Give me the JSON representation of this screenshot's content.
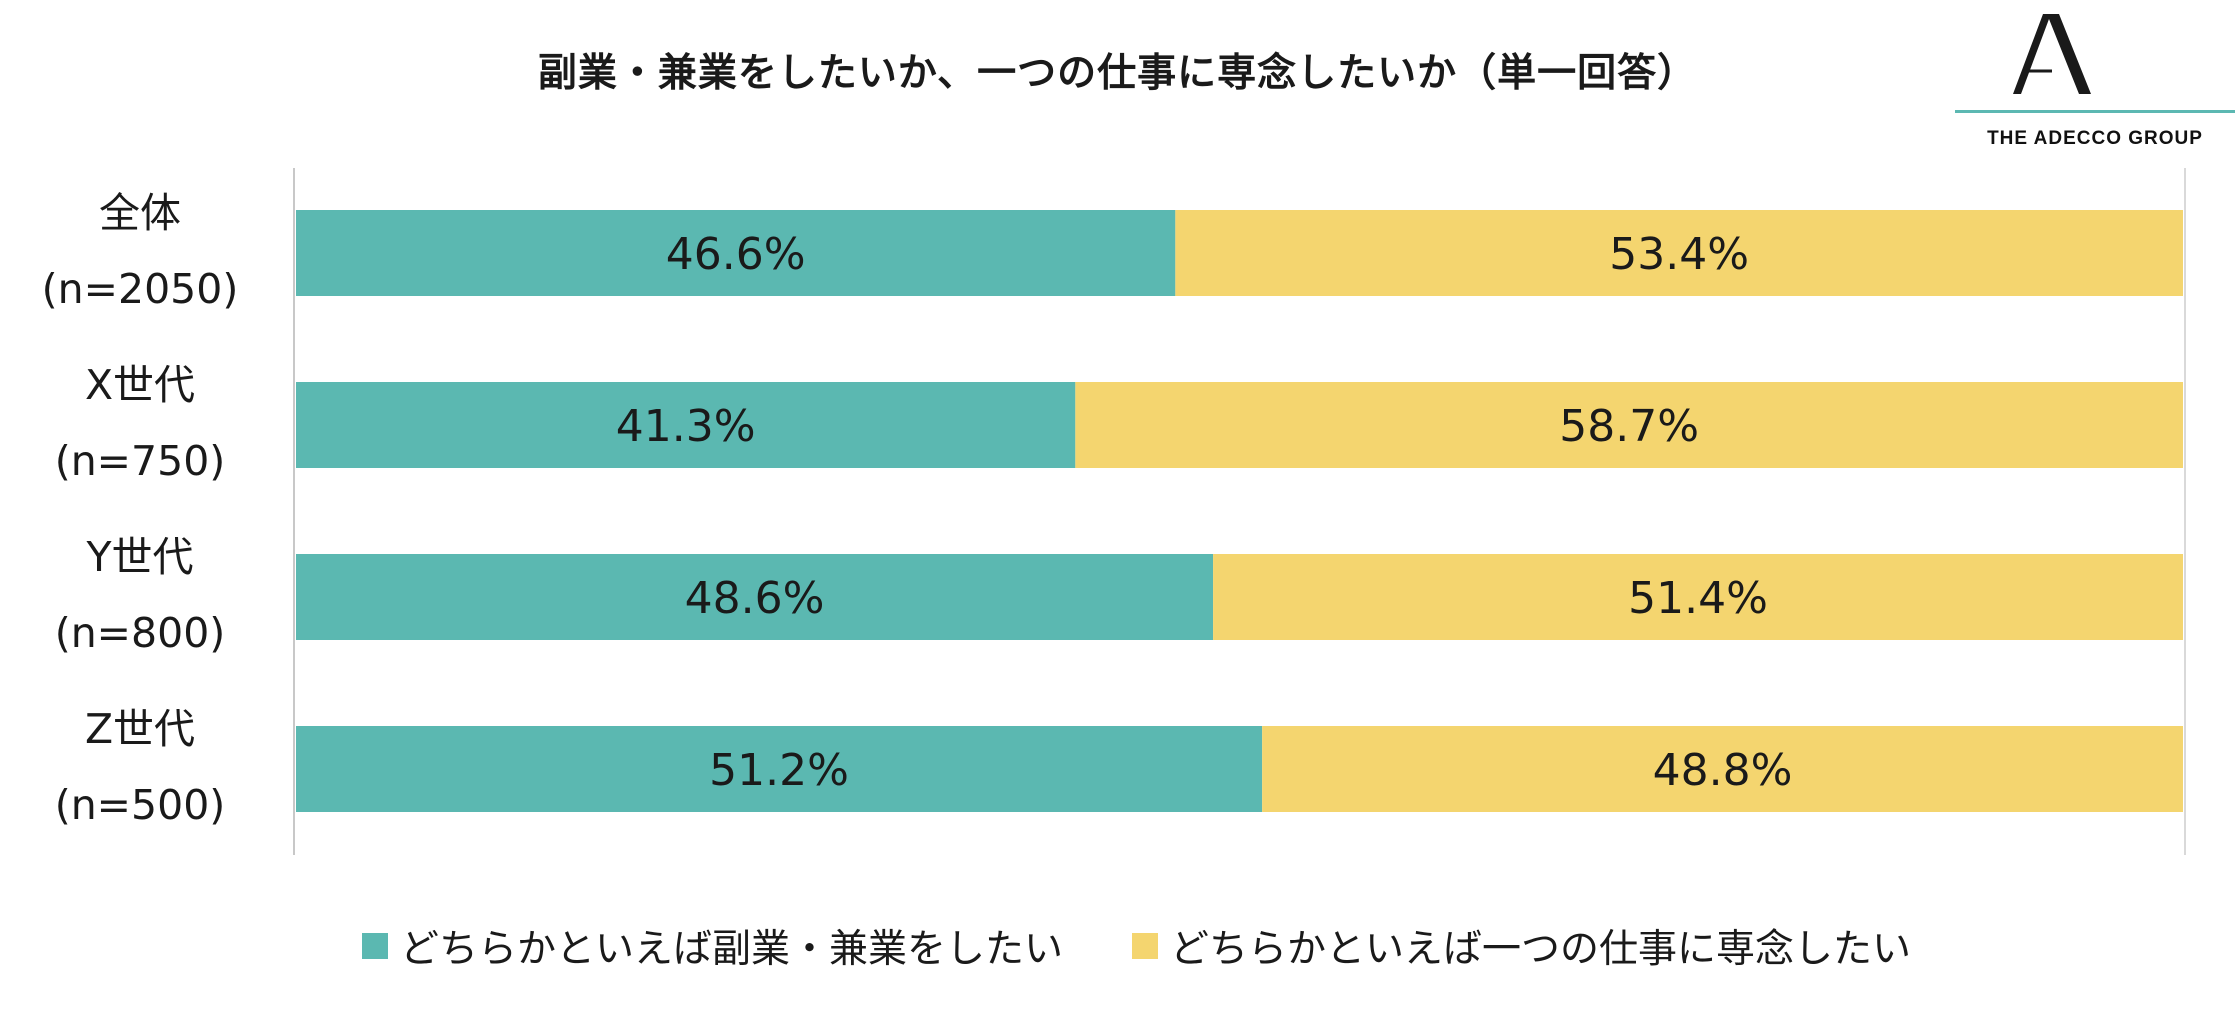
{
  "brand": "THE ADECCO GROUP",
  "chart_data": {
    "type": "bar",
    "orientation": "horizontal",
    "stacked": true,
    "title": "副業・兼業をしたいか、一つの仕事に専念したいか（単一回答）",
    "categories": [
      [
        "全体",
        "(n=2050)"
      ],
      [
        "X世代",
        "(n=750)"
      ],
      [
        "Y世代",
        "(n=800)"
      ],
      [
        "Z世代",
        "(n=500)"
      ]
    ],
    "series": [
      {
        "name": "どちらかといえば副業・兼業をしたい",
        "color": "#5bb8b1",
        "values": [
          46.6,
          41.3,
          48.6,
          51.2
        ]
      },
      {
        "name": "どちらかといえば一つの仕事に専念したい",
        "color": "#f4d56f",
        "values": [
          53.4,
          58.7,
          51.4,
          48.8
        ]
      }
    ],
    "value_suffix": "%",
    "xlim": [
      0,
      100
    ],
    "legend": "bottom",
    "grid": false
  }
}
